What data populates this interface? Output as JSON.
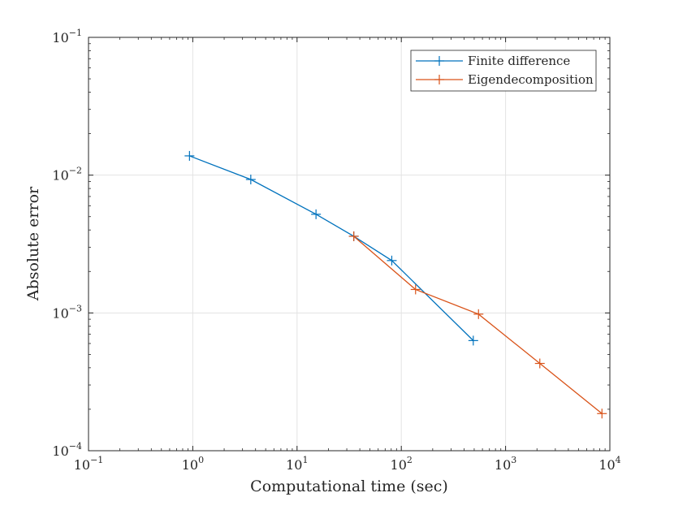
{
  "chart_data": {
    "type": "line",
    "title": "",
    "xlabel": "Computational time (sec)",
    "ylabel": "Absolute error",
    "xscale": "log",
    "yscale": "log",
    "xlim": [
      0.1,
      10000
    ],
    "ylim": [
      0.0001,
      0.1
    ],
    "grid": true,
    "legend_position": "top-right",
    "x_ticks": [
      {
        "base": "10",
        "exp": "−1",
        "value": 0.1
      },
      {
        "base": "10",
        "exp": "0",
        "value": 1
      },
      {
        "base": "10",
        "exp": "1",
        "value": 10
      },
      {
        "base": "10",
        "exp": "2",
        "value": 100
      },
      {
        "base": "10",
        "exp": "3",
        "value": 1000
      },
      {
        "base": "10",
        "exp": "4",
        "value": 10000
      }
    ],
    "y_ticks": [
      {
        "base": "10",
        "exp": "−4",
        "value": 0.0001
      },
      {
        "base": "10",
        "exp": "−3",
        "value": 0.001
      },
      {
        "base": "10",
        "exp": "−2",
        "value": 0.01
      },
      {
        "base": "10",
        "exp": "−1",
        "value": 0.1
      }
    ],
    "series": [
      {
        "name": "Finite difference",
        "color": "#0072BD",
        "marker": "plus",
        "x": [
          0.93,
          3.6,
          15.2,
          35,
          81,
          490
        ],
        "y": [
          0.0138,
          0.0093,
          0.0052,
          0.0036,
          0.0024,
          0.00063
        ]
      },
      {
        "name": "Eigendecomposition",
        "color": "#D95319",
        "marker": "plus",
        "x": [
          35,
          137,
          550,
          2130,
          8400
        ],
        "y": [
          0.0036,
          0.00148,
          0.00098,
          0.00043,
          0.000186
        ]
      }
    ]
  }
}
